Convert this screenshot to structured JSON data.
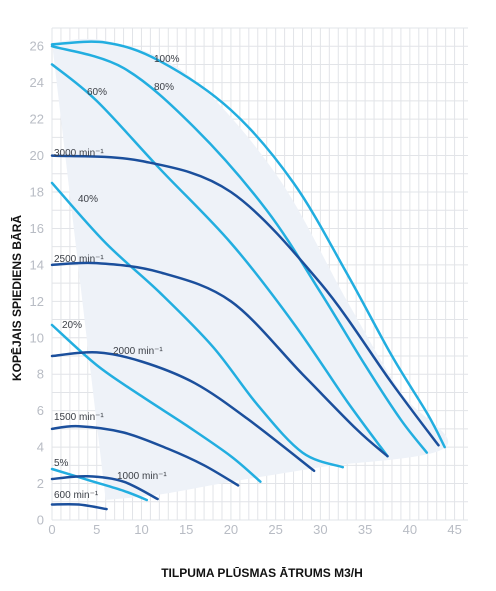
{
  "chart_data": {
    "type": "line",
    "xlabel": "TILPUMA PLŪSMAS ĀTRUMS M3/H",
    "ylabel": "KOPĒJAIS SPIEDIENS BĀRĀ",
    "xlim": [
      0,
      45
    ],
    "ylim": [
      0,
      26
    ],
    "xticks": [
      0,
      5,
      10,
      15,
      20,
      25,
      30,
      35,
      40,
      45
    ],
    "yticks": [
      0,
      2,
      4,
      6,
      8,
      10,
      12,
      14,
      16,
      18,
      20,
      22,
      24,
      26
    ],
    "grid": true,
    "colors": {
      "speed": "#1b4f9c",
      "pct": "#22aee0",
      "fill": "#eef2f8",
      "grid": "#e2e4e8"
    },
    "envelope": [
      [
        0,
        26.2
      ],
      [
        6,
        26.3
      ],
      [
        15,
        24.5
      ],
      [
        25,
        19
      ],
      [
        33,
        12
      ],
      [
        39,
        7
      ],
      [
        44,
        4
      ],
      [
        30,
        2.9
      ],
      [
        20,
        2.1
      ],
      [
        12,
        1.4
      ],
      [
        6,
        1.1
      ]
    ],
    "speed_curves": [
      {
        "label": "3000 min⁻¹",
        "points": [
          [
            0,
            20
          ],
          [
            10,
            19.7
          ],
          [
            20,
            18
          ],
          [
            30,
            13
          ],
          [
            38,
            7.5
          ],
          [
            43.2,
            4.1
          ]
        ]
      },
      {
        "label": "2500 min⁻¹",
        "points": [
          [
            0,
            14
          ],
          [
            5,
            14.1
          ],
          [
            12,
            13.6
          ],
          [
            20,
            12
          ],
          [
            28,
            8
          ],
          [
            34,
            5
          ],
          [
            37.5,
            3.5
          ]
        ]
      },
      {
        "label": "2000 min⁻¹",
        "points": [
          [
            0,
            9
          ],
          [
            5,
            9.2
          ],
          [
            10,
            8.7
          ],
          [
            16,
            7.5
          ],
          [
            22,
            5.5
          ],
          [
            29.3,
            2.7
          ]
        ]
      },
      {
        "label": "1500 min⁻¹",
        "points": [
          [
            0,
            5
          ],
          [
            3,
            5.15
          ],
          [
            8,
            4.8
          ],
          [
            13,
            3.9
          ],
          [
            17,
            3
          ],
          [
            20.8,
            1.9
          ]
        ]
      },
      {
        "label": "1000 min⁻¹",
        "points": [
          [
            0,
            2.25
          ],
          [
            4,
            2.4
          ],
          [
            8,
            2.1
          ],
          [
            11.8,
            1.15
          ]
        ]
      },
      {
        "label": "600 min⁻¹",
        "points": [
          [
            0,
            0.85
          ],
          [
            3,
            0.85
          ],
          [
            6.1,
            0.6
          ]
        ]
      }
    ],
    "pct_curves": [
      {
        "label": "100%",
        "points": [
          [
            0,
            26.1
          ],
          [
            6,
            26.2
          ],
          [
            12,
            25.2
          ],
          [
            20,
            22.5
          ],
          [
            27,
            18.5
          ],
          [
            33,
            13.5
          ],
          [
            38,
            9
          ],
          [
            42,
            5.8
          ],
          [
            43.9,
            4
          ]
        ]
      },
      {
        "label": "80%",
        "points": [
          [
            0,
            26
          ],
          [
            8,
            24.8
          ],
          [
            16,
            21.5
          ],
          [
            24,
            17
          ],
          [
            30,
            12.5
          ],
          [
            35,
            8.5
          ],
          [
            39,
            5.5
          ],
          [
            41.9,
            3.7
          ]
        ]
      },
      {
        "label": "60%",
        "points": [
          [
            0,
            25
          ],
          [
            5,
            23
          ],
          [
            12,
            19.3
          ],
          [
            20,
            15.2
          ],
          [
            27,
            10.8
          ],
          [
            33,
            6.5
          ],
          [
            37.5,
            3.5
          ]
        ]
      },
      {
        "label": "40%",
        "points": [
          [
            0,
            18.5
          ],
          [
            6,
            15.2
          ],
          [
            12,
            12.5
          ],
          [
            18,
            9.5
          ],
          [
            23,
            6.3
          ],
          [
            28,
            3.7
          ],
          [
            32.5,
            2.9
          ]
        ]
      },
      {
        "label": "20%",
        "points": [
          [
            0,
            10.7
          ],
          [
            5,
            8.5
          ],
          [
            10,
            6.8
          ],
          [
            15,
            5.2
          ],
          [
            20,
            3.5
          ],
          [
            23.3,
            2.1
          ]
        ]
      },
      {
        "label": "5%",
        "points": [
          [
            0,
            2.8
          ],
          [
            4,
            2.2
          ],
          [
            8,
            1.6
          ],
          [
            10.6,
            1.1
          ]
        ]
      }
    ]
  }
}
